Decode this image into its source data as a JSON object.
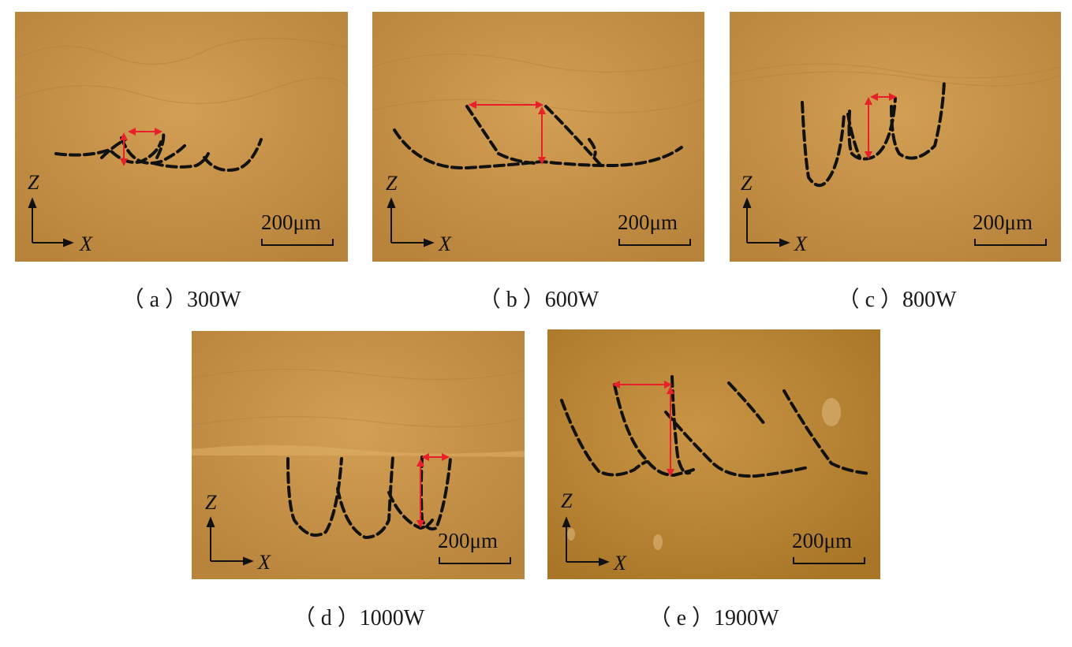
{
  "panels": [
    {
      "id": "a",
      "caption": "（ a ）300W",
      "scale_label": "200μm",
      "axis_z": "Z",
      "axis_x": "X"
    },
    {
      "id": "b",
      "caption": "（ b ）600W",
      "scale_label": "200μm",
      "axis_z": "Z",
      "axis_x": "X"
    },
    {
      "id": "c",
      "caption": "（ c ）800W",
      "scale_label": "200μm",
      "axis_z": "Z",
      "axis_x": "X"
    },
    {
      "id": "d",
      "caption": "（ d ）1000W",
      "scale_label": "200μm",
      "axis_z": "Z",
      "axis_x": "X"
    },
    {
      "id": "e",
      "caption": "（ e ）1900W",
      "scale_label": "200μm",
      "axis_z": "Z",
      "axis_x": "X"
    }
  ],
  "colors": {
    "micrograph_bg": "#c9944a",
    "micrograph_bg_dark": "#b98438",
    "boundary_line": "#111111",
    "measure_arrow": "#e8202a"
  }
}
